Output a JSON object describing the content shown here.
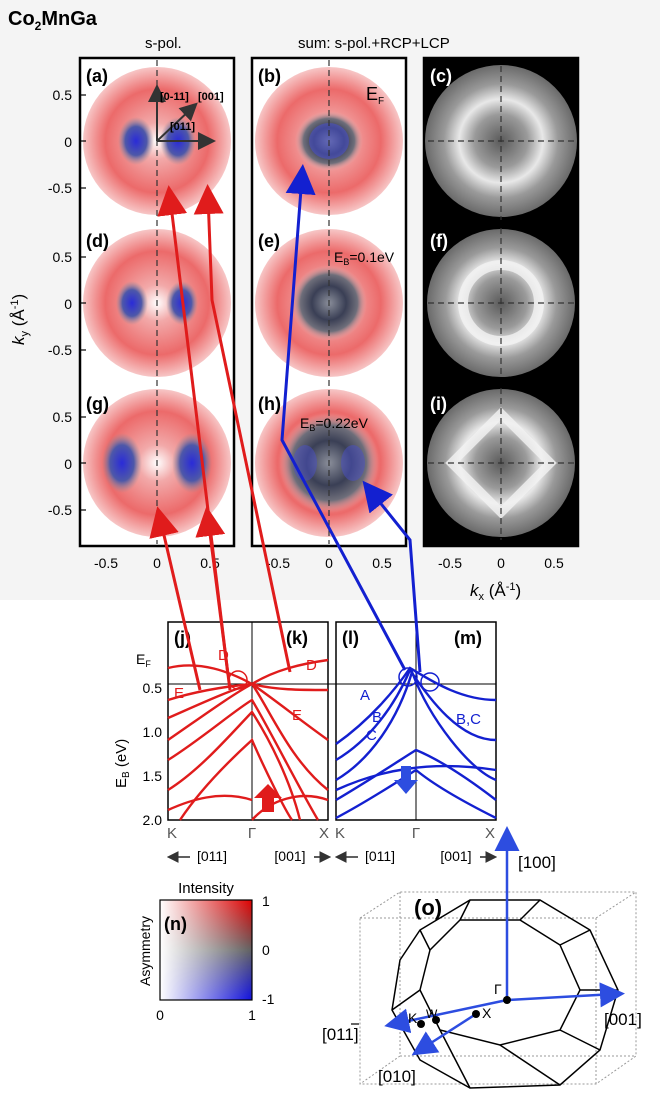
{
  "compound": "Co",
  "compound_sub": "2",
  "compound_rest": "MnGa",
  "col_label_1": "s-pol.",
  "col_label_2": "sum: s-pol.+RCP+LCP",
  "panels": {
    "a": "(a)",
    "b": "(b)",
    "c": "(c)",
    "d": "(d)",
    "e": "(e)",
    "f": "(f)",
    "g": "(g)",
    "h": "(h)",
    "i": "(i)",
    "j": "(j)",
    "k": "(k)",
    "l": "(l)",
    "m": "(m)",
    "n": "(n)",
    "o": "(o)"
  },
  "ef_label": "E",
  "ef_sub": "F",
  "eb_e_base": "E",
  "eb_e_sub": "B",
  "eb_e_val": "=0.1eV",
  "eb_h_val": "=0.22eV",
  "directions": {
    "d1": "[0-11]",
    "d2": "[001]",
    "d3": "[011]"
  },
  "ky_axis": {
    "k": "k",
    "sub": "y",
    "unit": " (Å",
    "exp": "-1",
    "close": ")"
  },
  "kx_axis": {
    "k": "k",
    "sub": "x",
    "unit": " (Å",
    "exp": "-1",
    "close": ")"
  },
  "y_ticks": [
    "0.5",
    "0",
    "-0.5"
  ],
  "x_ticks": [
    "-0.5",
    "0",
    "0.5"
  ],
  "band_ylabel_base": "E",
  "band_ylabel_sub": "B",
  "band_ylabel_unit": " (eV)",
  "band_ef": "E",
  "band_ef_sub": "F",
  "band_ticks": [
    "0.5",
    "1.0",
    "1.5",
    "2.0"
  ],
  "band_letters": {
    "D": "D",
    "E": "E",
    "A": "A",
    "B": "B",
    "C": "C",
    "BC": "B,C"
  },
  "band_sym": {
    "K": "K",
    "G": "Γ",
    "X": "X"
  },
  "band_dirs": {
    "left": "[011]",
    "right": "[001]"
  },
  "colorbar": {
    "title": "Intensity",
    "ylabel": "Asymmetry",
    "y_ticks": [
      "1",
      "0",
      "-1"
    ],
    "x_ticks": [
      "0",
      "1"
    ]
  },
  "bz": {
    "dir_100": "[100]",
    "dir_001": "[001]",
    "dir_01m1": "[011]",
    "dir_010": "[010]",
    "K": "K",
    "W": "W",
    "X": "X",
    "G": "Γ"
  },
  "colors": {
    "red": "#e01c1c",
    "blue": "#1320d0",
    "arrow_blue": "#2d4de0"
  }
}
